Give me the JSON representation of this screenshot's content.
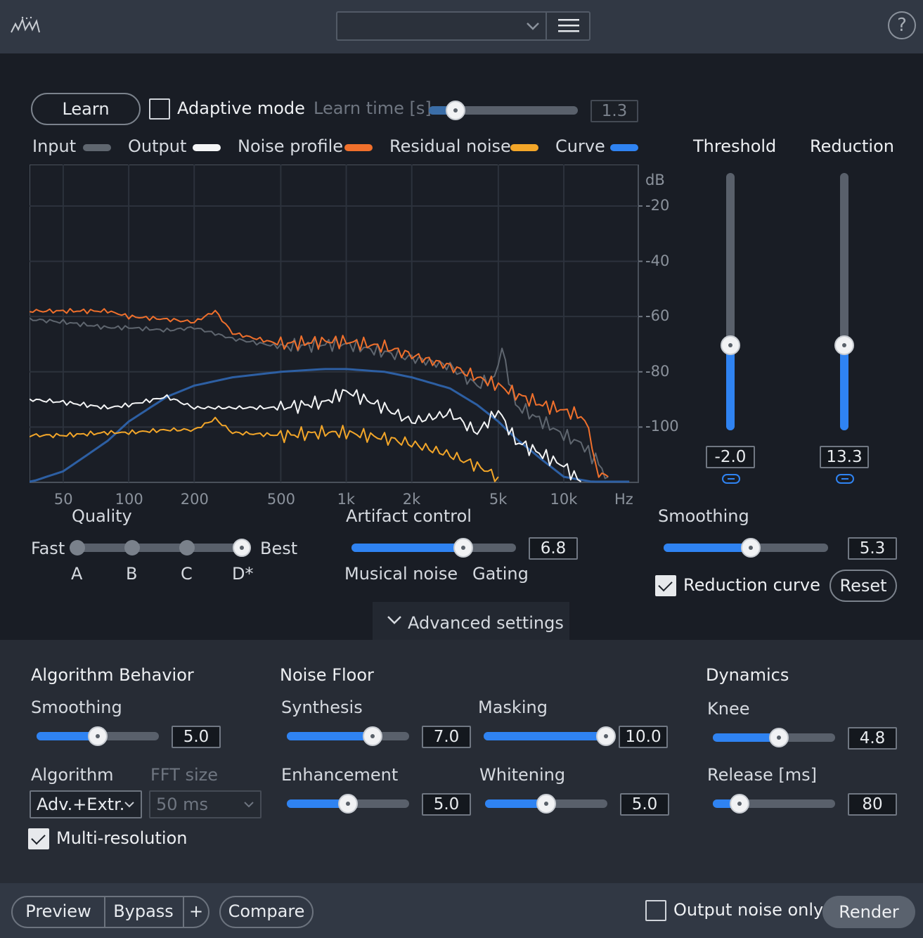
{
  "header": {
    "preset_value": "",
    "help_label": "?"
  },
  "learn": {
    "learn_label": "Learn",
    "adaptive_label": "Adaptive mode",
    "learn_time_label": "Learn time [s]",
    "learn_time_value": "1.3",
    "learn_time_fraction": 0.18
  },
  "legend": {
    "input": "Input",
    "output": "Output",
    "noise_profile": "Noise profile",
    "residual_noise": "Residual noise",
    "curve": "Curve",
    "colors": {
      "input": "#5f666f",
      "output": "#f4f5f6",
      "noise_profile": "#f0702c",
      "residual_noise": "#f3a629",
      "curve": "#2f83f2"
    }
  },
  "chart_data": {
    "type": "line",
    "xscale": "log",
    "x_ticks": [
      "50",
      "100",
      "200",
      "500",
      "1k",
      "2k",
      "5k",
      "10k"
    ],
    "x_tick_values": [
      50,
      100,
      200,
      500,
      1000,
      2000,
      5000,
      10000
    ],
    "x_unit": "Hz",
    "y_unit": "dB",
    "y_ticks": [
      "-20",
      "-40",
      "-60",
      "-80",
      "-100"
    ],
    "y_tick_values": [
      -20,
      -40,
      -60,
      -80,
      -100
    ],
    "xlim": [
      35,
      22000
    ],
    "ylim": [
      -120,
      -5
    ],
    "grid": true,
    "series": [
      {
        "name": "Input",
        "x": [
          35,
          50,
          80,
          100,
          150,
          200,
          300,
          500,
          800,
          1000,
          1500,
          2000,
          3000,
          4000,
          4800,
          5200,
          6000,
          8000,
          10000,
          12000,
          14000,
          16000
        ],
        "y": [
          -61,
          -62,
          -64,
          -64,
          -65,
          -64,
          -68,
          -71,
          -70,
          -70,
          -73,
          -75,
          -78,
          -85,
          -82,
          -72,
          -92,
          -98,
          -103,
          -106,
          -112,
          -118
        ]
      },
      {
        "name": "Output",
        "x": [
          35,
          50,
          80,
          100,
          150,
          200,
          300,
          500,
          800,
          1000,
          1500,
          2000,
          3000,
          4000,
          5000,
          6000,
          8000,
          10000,
          12000
        ],
        "y": [
          -90,
          -91,
          -93,
          -92,
          -89,
          -93,
          -93,
          -93,
          -91,
          -87,
          -93,
          -98,
          -95,
          -102,
          -94,
          -105,
          -110,
          -114,
          -120
        ]
      },
      {
        "name": "Noise profile",
        "x": [
          35,
          50,
          80,
          100,
          150,
          200,
          250,
          300,
          500,
          800,
          1000,
          1500,
          2000,
          3000,
          4000,
          5000,
          6000,
          8000,
          10000,
          12000,
          13000,
          14000,
          16000
        ],
        "y": [
          -58,
          -58,
          -58,
          -60,
          -61,
          -62,
          -58,
          -66,
          -70,
          -69,
          -69,
          -71,
          -74,
          -78,
          -82,
          -85,
          -88,
          -92,
          -94,
          -96,
          -100,
          -115,
          -118
        ]
      },
      {
        "name": "Residual noise",
        "x": [
          35,
          50,
          80,
          100,
          150,
          200,
          250,
          300,
          500,
          800,
          1000,
          1500,
          2000,
          3000,
          4000,
          5000
        ],
        "y": [
          -103,
          -103,
          -102,
          -102,
          -101,
          -101,
          -97,
          -102,
          -103,
          -102,
          -102,
          -104,
          -106,
          -110,
          -114,
          -118
        ]
      },
      {
        "name": "Curve",
        "x": [
          35,
          50,
          80,
          100,
          150,
          200,
          300,
          500,
          800,
          1000,
          1500,
          2000,
          3000,
          4000,
          5000,
          6000,
          8000,
          10000,
          14000,
          20000
        ],
        "y": [
          -120,
          -116,
          -105,
          -98,
          -89,
          -85,
          -82,
          -80,
          -79,
          -79,
          -80,
          -82,
          -86,
          -92,
          -98,
          -104,
          -112,
          -118,
          -120,
          -120
        ]
      }
    ]
  },
  "threshold": {
    "label": "Threshold",
    "value": "-2.0",
    "fraction": 0.33
  },
  "reduction": {
    "label": "Reduction",
    "value": "13.3",
    "fraction": 0.33
  },
  "quality": {
    "label": "Quality",
    "fast": "Fast",
    "best": "Best",
    "options": [
      "A",
      "B",
      "C",
      "D*"
    ],
    "selected_index": 3
  },
  "artifact": {
    "label": "Artifact control",
    "value": "6.8",
    "fraction": 0.68,
    "left_label": "Musical noise",
    "right_label": "Gating"
  },
  "smoothing_main": {
    "label": "Smoothing",
    "value": "5.3",
    "fraction": 0.53
  },
  "reduction_curve": {
    "label": "Reduction curve",
    "checked": true
  },
  "reset_label": "Reset",
  "advanced_label": "Advanced settings",
  "advanced": {
    "algorithm_behavior": {
      "title": "Algorithm Behavior",
      "smoothing_label": "Smoothing",
      "smoothing_value": "5.0",
      "smoothing_fraction": 0.5,
      "algorithm_label": "Algorithm",
      "algorithm_value": "Adv.+Extr.",
      "fft_label": "FFT size",
      "fft_value": "50 ms",
      "multires_label": "Multi-resolution",
      "multires_checked": true
    },
    "noise_floor": {
      "title": "Noise Floor",
      "synthesis_label": "Synthesis",
      "synthesis_value": "7.0",
      "synthesis_fraction": 0.7,
      "masking_label": "Masking",
      "masking_value": "10.0",
      "masking_fraction": 1.0,
      "enhancement_label": "Enhancement",
      "enhancement_value": "5.0",
      "enhancement_fraction": 0.5,
      "whitening_label": "Whitening",
      "whitening_value": "5.0",
      "whitening_fraction": 0.5
    },
    "dynamics": {
      "title": "Dynamics",
      "knee_label": "Knee",
      "knee_value": "4.8",
      "knee_fraction": 0.54,
      "release_label": "Release [ms]",
      "release_value": "80",
      "release_fraction": 0.22
    }
  },
  "footer": {
    "preview": "Preview",
    "bypass": "Bypass",
    "plus": "+",
    "compare": "Compare",
    "output_noise_only": "Output noise only",
    "render": "Render"
  }
}
